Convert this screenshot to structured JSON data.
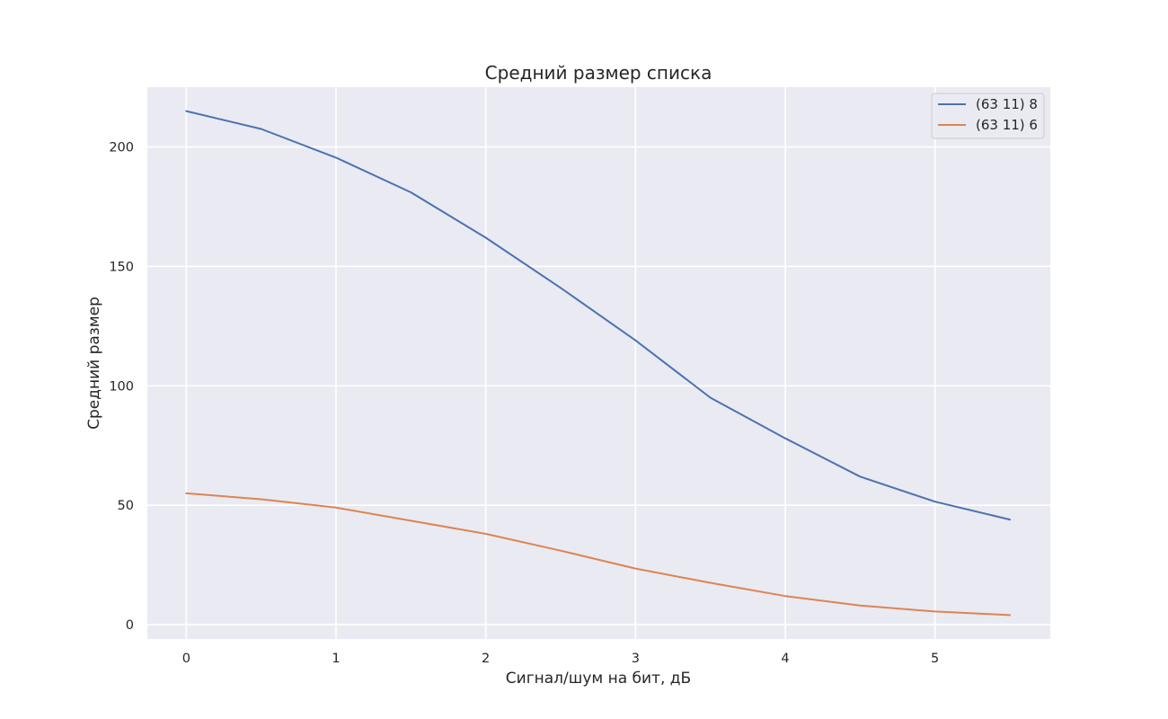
{
  "chart_data": {
    "type": "line",
    "title": "Средний размер списка",
    "xlabel": "Сигнал/шум на бит, дБ",
    "ylabel": "Средний размер",
    "x": [
      0,
      0.5,
      1,
      1.5,
      2,
      2.5,
      3,
      3.5,
      4,
      4.5,
      5,
      5.5
    ],
    "xlim": [
      -0.26,
      5.77
    ],
    "ylim": [
      -6,
      225
    ],
    "xticks": [
      0,
      1,
      2,
      3,
      4,
      5
    ],
    "yticks": [
      0,
      50,
      100,
      150,
      200
    ],
    "grid": true,
    "legend_position": "top-right",
    "series": [
      {
        "name": "(63 11) 8",
        "color": "#4c72b0",
        "values": [
          215,
          207.5,
          195.5,
          181,
          162,
          141,
          119,
          95,
          78,
          62,
          51.5,
          44
        ]
      },
      {
        "name": "(63 11) 6",
        "color": "#dd8452",
        "values": [
          55,
          52.5,
          49,
          43.5,
          38,
          31,
          23.5,
          17.5,
          12,
          8,
          5.5,
          4
        ]
      }
    ]
  }
}
